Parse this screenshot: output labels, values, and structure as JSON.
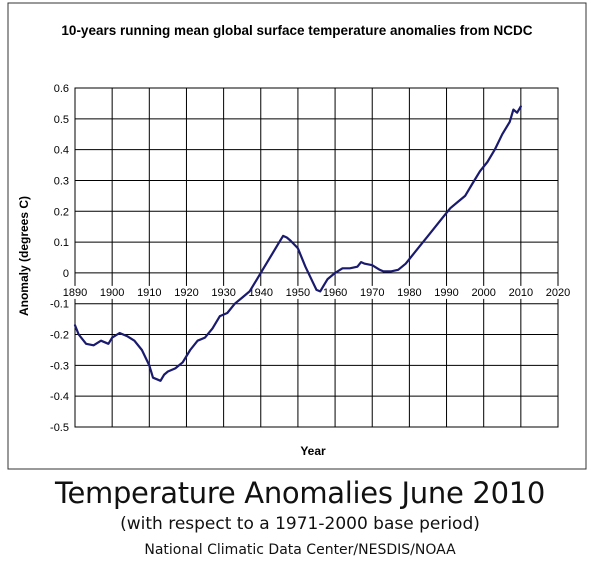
{
  "chart_data": {
    "type": "line",
    "title": "10-years running mean global surface temperature anomalies from NCDC",
    "xlabel": "Year",
    "ylabel": "Anomaly (degrees C)",
    "xlim": [
      1890,
      2020
    ],
    "ylim": [
      -0.5,
      0.6
    ],
    "x_ticks": [
      1890,
      1900,
      1910,
      1920,
      1930,
      1940,
      1950,
      1960,
      1970,
      1980,
      1990,
      2000,
      2010,
      2020
    ],
    "x_tick_labels": [
      "1890",
      "1900",
      "1910",
      "1920",
      "1930",
      "1940",
      "1950",
      "1960",
      "1970",
      "1980",
      "1990",
      "2000",
      "2010",
      "2020"
    ],
    "y_ticks": [
      0.6,
      0.5,
      0.4,
      0.3,
      0.2,
      0.1,
      0,
      -0.1,
      -0.2,
      -0.3,
      -0.4,
      -0.5
    ],
    "y_tick_labels": [
      "0.6",
      "0.5",
      "0.4",
      "0.3",
      "0.2",
      "0.1",
      "0",
      "-0.1",
      "-0.2",
      "-0.3",
      "-0.4",
      "-0.5"
    ],
    "grid": true,
    "legend": "none",
    "line_color": "#1a1a6e",
    "series": [
      {
        "x": [
          1890,
          1891,
          1893,
          1895,
          1897,
          1899,
          1900,
          1902,
          1904,
          1906,
          1908,
          1910,
          1911,
          1912,
          1913,
          1914,
          1915,
          1917,
          1919,
          1921,
          1923,
          1925,
          1927,
          1929,
          1931,
          1933,
          1935,
          1937,
          1939,
          1941,
          1943,
          1945,
          1946,
          1947,
          1948,
          1950,
          1952,
          1954,
          1955,
          1956,
          1957,
          1958,
          1960,
          1962,
          1964,
          1966,
          1967,
          1968,
          1970,
          1972,
          1973,
          1975,
          1977,
          1979,
          1981,
          1983,
          1985,
          1987,
          1989,
          1991,
          1993,
          1995,
          1997,
          1999,
          2001,
          2003,
          2005,
          2007,
          2008,
          2009,
          2010
        ],
        "y": [
          -0.17,
          -0.2,
          -0.23,
          -0.235,
          -0.22,
          -0.23,
          -0.21,
          -0.195,
          -0.205,
          -0.22,
          -0.25,
          -0.3,
          -0.34,
          -0.345,
          -0.35,
          -0.33,
          -0.32,
          -0.31,
          -0.29,
          -0.25,
          -0.22,
          -0.21,
          -0.18,
          -0.14,
          -0.13,
          -0.1,
          -0.08,
          -0.06,
          -0.02,
          0.02,
          0.06,
          0.1,
          0.12,
          0.115,
          0.105,
          0.08,
          0.02,
          -0.03,
          -0.055,
          -0.06,
          -0.04,
          -0.02,
          0.0,
          0.015,
          0.015,
          0.02,
          0.035,
          0.03,
          0.025,
          0.01,
          0.005,
          0.005,
          0.01,
          0.03,
          0.06,
          0.09,
          0.12,
          0.15,
          0.18,
          0.21,
          0.23,
          0.25,
          0.29,
          0.33,
          0.36,
          0.4,
          0.45,
          0.49,
          0.53,
          0.52,
          0.54
        ]
      }
    ]
  },
  "caption": {
    "main": "Temperature Anomalies June 2010",
    "sub": "(with respect to a 1971-2000 base period)",
    "source": "National Climatic Data Center/NESDIS/NOAA"
  }
}
